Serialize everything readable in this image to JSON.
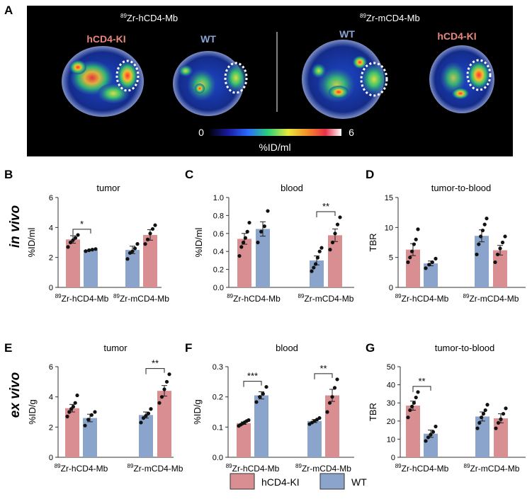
{
  "colors": {
    "hcd4_ki": "#d98e92",
    "wt": "#8aa4cb"
  },
  "panel_a": {
    "label": "A",
    "left_title": {
      "sup": "89",
      "main": "Zr-hCD4-Mb"
    },
    "right_title": {
      "sup": "89",
      "main": "Zr-mCD4-Mb"
    },
    "mouse_labels": [
      "hCD4-KI",
      "WT",
      "WT",
      "hCD4-KI"
    ],
    "colorbar": {
      "min": "0",
      "max": "6",
      "label": "%ID/ml"
    }
  },
  "row_labels": {
    "top": "in vivo",
    "bottom": "ex vivo"
  },
  "legend": [
    {
      "name": "hCD4-KI",
      "color": "#d98e92"
    },
    {
      "name": "WT",
      "color": "#8aa4cb"
    }
  ],
  "chart_data": [
    {
      "id": "B",
      "type": "bar",
      "title": "tumor",
      "ylabel": "%ID/ml",
      "ylim": [
        0,
        6
      ],
      "yticks": [
        "0",
        "2",
        "4",
        "6"
      ],
      "groups": [
        {
          "sup": "89",
          "label": "Zr-hCD4-Mb",
          "bars": [
            {
              "series": "hCD4-KI",
              "value": 3.2,
              "sem": 0.25,
              "points": [
                2.7,
                3.0,
                3.15,
                3.3,
                3.5
              ]
            },
            {
              "series": "WT",
              "value": 2.5,
              "sem": 0.05,
              "points": [
                2.42,
                2.48,
                2.52,
                2.56
              ]
            }
          ]
        },
        {
          "sup": "89",
          "label": "Zr-mCD4-Mb",
          "bars": [
            {
              "series": "WT",
              "value": 2.5,
              "sem": 0.25,
              "points": [
                1.9,
                2.3,
                2.4,
                2.6,
                2.9
              ]
            },
            {
              "series": "hCD4-KI",
              "value": 3.5,
              "sem": 0.35,
              "points": [
                2.9,
                3.2,
                3.6,
                3.9,
                4.15
              ]
            }
          ]
        }
      ],
      "significance": [
        {
          "group": 0,
          "label": "*"
        }
      ]
    },
    {
      "id": "C",
      "type": "bar",
      "title": "blood",
      "ylabel": "%ID/ml",
      "ylim": [
        0,
        1.0
      ],
      "yticks": [
        "0.0",
        "0.2",
        "0.4",
        "0.6",
        "0.8",
        "1.0"
      ],
      "groups": [
        {
          "sup": "89",
          "label": "Zr-hCD4-Mb",
          "bars": [
            {
              "series": "hCD4-KI",
              "value": 0.54,
              "sem": 0.06,
              "points": [
                0.35,
                0.45,
                0.5,
                0.55,
                0.62,
                0.72
              ]
            },
            {
              "series": "WT",
              "value": 0.65,
              "sem": 0.08,
              "points": [
                0.5,
                0.62,
                0.68,
                0.85
              ]
            }
          ]
        },
        {
          "sup": "89",
          "label": "Zr-mCD4-Mb",
          "bars": [
            {
              "series": "WT",
              "value": 0.3,
              "sem": 0.05,
              "points": [
                0.18,
                0.22,
                0.26,
                0.33,
                0.4,
                0.44
              ]
            },
            {
              "series": "hCD4-KI",
              "value": 0.58,
              "sem": 0.07,
              "points": [
                0.42,
                0.5,
                0.6,
                0.7,
                0.78
              ]
            }
          ]
        }
      ],
      "significance": [
        {
          "group": 1,
          "label": "**"
        }
      ]
    },
    {
      "id": "D",
      "type": "bar",
      "title": "tumor-to-blood",
      "ylabel": "TBR",
      "ylim": [
        0,
        15
      ],
      "yticks": [
        "0",
        "5",
        "10",
        "15"
      ],
      "groups": [
        {
          "sup": "89",
          "label": "Zr-hCD4-Mb",
          "bars": [
            {
              "series": "hCD4-KI",
              "value": 6.3,
              "sem": 1.0,
              "points": [
                4.2,
                5.0,
                6.0,
                7.2,
                8.0,
                9.7
              ]
            },
            {
              "series": "WT",
              "value": 4.0,
              "sem": 0.4,
              "points": [
                3.2,
                3.8,
                4.2,
                4.8
              ]
            }
          ]
        },
        {
          "sup": "89",
          "label": "Zr-mCD4-Mb",
          "bars": [
            {
              "series": "WT",
              "value": 8.6,
              "sem": 1.0,
              "points": [
                5.5,
                7.2,
                8.5,
                9.5,
                10.5,
                11.5
              ]
            },
            {
              "series": "hCD4-KI",
              "value": 6.2,
              "sem": 0.8,
              "points": [
                4.2,
                5.5,
                6.5,
                7.5,
                8.5
              ]
            }
          ]
        }
      ],
      "significance": []
    },
    {
      "id": "E",
      "type": "bar",
      "title": "tumor",
      "ylabel": "%ID/g",
      "ylim": [
        0,
        6
      ],
      "yticks": [
        "0",
        "2",
        "4",
        "6"
      ],
      "groups": [
        {
          "sup": "89",
          "label": "Zr-hCD4-Mb",
          "bars": [
            {
              "series": "hCD4-KI",
              "value": 3.25,
              "sem": 0.25,
              "points": [
                2.7,
                3.0,
                3.2,
                3.35,
                3.6,
                4.1
              ]
            },
            {
              "series": "WT",
              "value": 2.6,
              "sem": 0.25,
              "points": [
                2.1,
                2.5,
                2.8,
                3.0
              ]
            }
          ]
        },
        {
          "sup": "89",
          "label": "Zr-mCD4-Mb",
          "bars": [
            {
              "series": "WT",
              "value": 2.8,
              "sem": 0.2,
              "points": [
                2.3,
                2.6,
                2.75,
                2.9,
                3.2
              ]
            },
            {
              "series": "hCD4-KI",
              "value": 4.4,
              "sem": 0.35,
              "points": [
                3.6,
                4.0,
                4.5,
                5.0,
                5.5
              ]
            }
          ]
        }
      ],
      "significance": [
        {
          "group": 1,
          "label": "**"
        }
      ]
    },
    {
      "id": "F",
      "type": "bar",
      "title": "blood",
      "ylabel": "%ID/g",
      "ylim": [
        0,
        0.3
      ],
      "yticks": [
        "0.0",
        "0.1",
        "0.2",
        "0.3"
      ],
      "groups": [
        {
          "sup": "89",
          "label": "Zr-hCD4-Mb",
          "bars": [
            {
              "series": "hCD4-KI",
              "value": 0.113,
              "sem": 0.004,
              "points": [
                0.104,
                0.108,
                0.112,
                0.116,
                0.12,
                0.123
              ]
            },
            {
              "series": "WT",
              "value": 0.205,
              "sem": 0.012,
              "points": [
                0.183,
                0.2,
                0.21,
                0.233
              ]
            }
          ]
        },
        {
          "sup": "89",
          "label": "Zr-mCD4-Mb",
          "bars": [
            {
              "series": "WT",
              "value": 0.12,
              "sem": 0.005,
              "points": [
                0.11,
                0.115,
                0.12,
                0.125,
                0.13
              ]
            },
            {
              "series": "hCD4-KI",
              "value": 0.205,
              "sem": 0.02,
              "points": [
                0.15,
                0.18,
                0.2,
                0.23,
                0.258
              ]
            }
          ]
        }
      ],
      "significance": [
        {
          "group": 0,
          "label": "***"
        },
        {
          "group": 1,
          "label": "**"
        }
      ]
    },
    {
      "id": "G",
      "type": "bar",
      "title": "tumor-to-blood",
      "ylabel": "TBR",
      "ylim": [
        0,
        50
      ],
      "yticks": [
        "0",
        "10",
        "20",
        "30",
        "40",
        "50"
      ],
      "groups": [
        {
          "sup": "89",
          "label": "Zr-hCD4-Mb",
          "bars": [
            {
              "series": "hCD4-KI",
              "value": 28.5,
              "sem": 2.5,
              "points": [
                22,
                26,
                28,
                30,
                33,
                36
              ]
            },
            {
              "series": "WT",
              "value": 13,
              "sem": 2,
              "points": [
                9,
                11,
                12.5,
                14,
                17
              ]
            }
          ]
        },
        {
          "sup": "89",
          "label": "Zr-mCD4-Mb",
          "bars": [
            {
              "series": "WT",
              "value": 22.5,
              "sem": 2.5,
              "points": [
                16,
                19,
                22,
                24,
                26,
                29
              ]
            },
            {
              "series": "hCD4-KI",
              "value": 21.5,
              "sem": 2.5,
              "points": [
                16,
                19,
                21,
                24,
                27
              ]
            }
          ]
        }
      ],
      "significance": [
        {
          "group": 0,
          "label": "**"
        }
      ]
    }
  ]
}
